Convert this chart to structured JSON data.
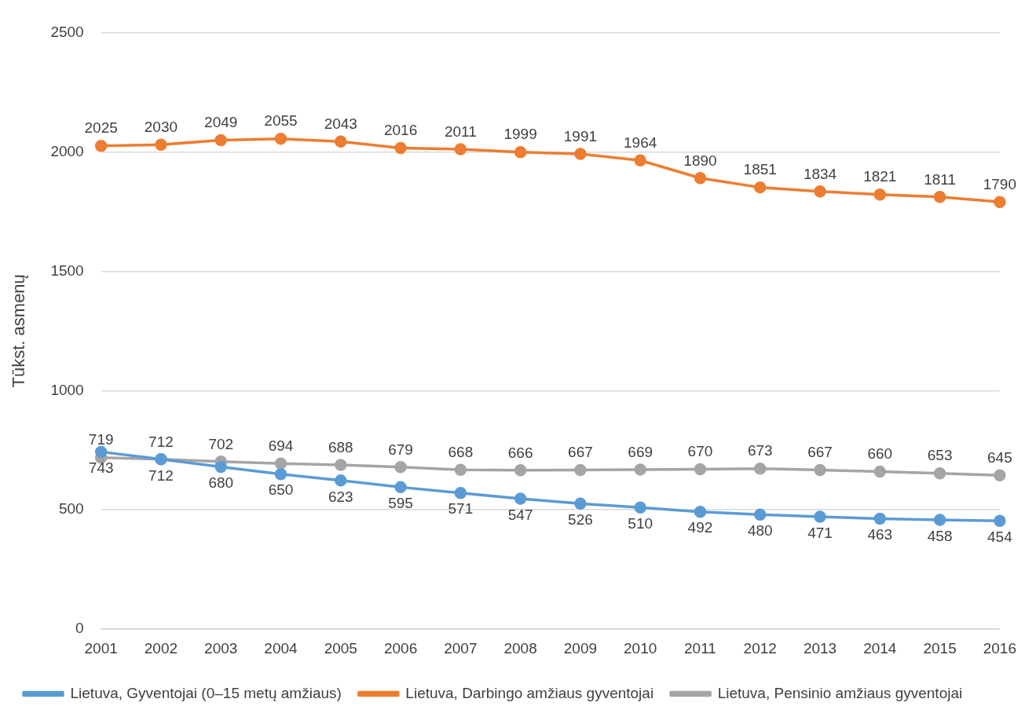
{
  "chart_data": {
    "type": "line",
    "ylabel": "Tūkst. asmenų",
    "categories": [
      "2001",
      "2002",
      "2003",
      "2004",
      "2005",
      "2006",
      "2007",
      "2008",
      "2009",
      "2010",
      "2011",
      "2012",
      "2013",
      "2014",
      "2015",
      "2016"
    ],
    "series": [
      {
        "name": "Lietuva, Gyventojai (0–15 metų amžiaus)",
        "color": "#5b9bd5",
        "values": [
          743,
          712,
          680,
          650,
          623,
          595,
          571,
          547,
          526,
          510,
          492,
          480,
          471,
          463,
          458,
          454
        ]
      },
      {
        "name": "Lietuva, Darbingo amžiaus gyventojai",
        "color": "#ed7d31",
        "values": [
          2025,
          2030,
          2049,
          2055,
          2043,
          2016,
          2011,
          1999,
          1991,
          1964,
          1890,
          1851,
          1834,
          1821,
          1811,
          1790
        ]
      },
      {
        "name": "Lietuva, Pensinio amžiaus gyventojai",
        "color": "#a5a5a5",
        "values": [
          719,
          712,
          702,
          694,
          688,
          679,
          668,
          666,
          667,
          669,
          670,
          673,
          667,
          660,
          653,
          645
        ]
      }
    ],
    "ylim": [
      0,
      2500
    ],
    "yticks": [
      0,
      500,
      1000,
      1500,
      2000,
      2500
    ],
    "grid": "y",
    "legend": "bottom",
    "marker": "circle",
    "line_style": "solid",
    "data_labels": true
  }
}
